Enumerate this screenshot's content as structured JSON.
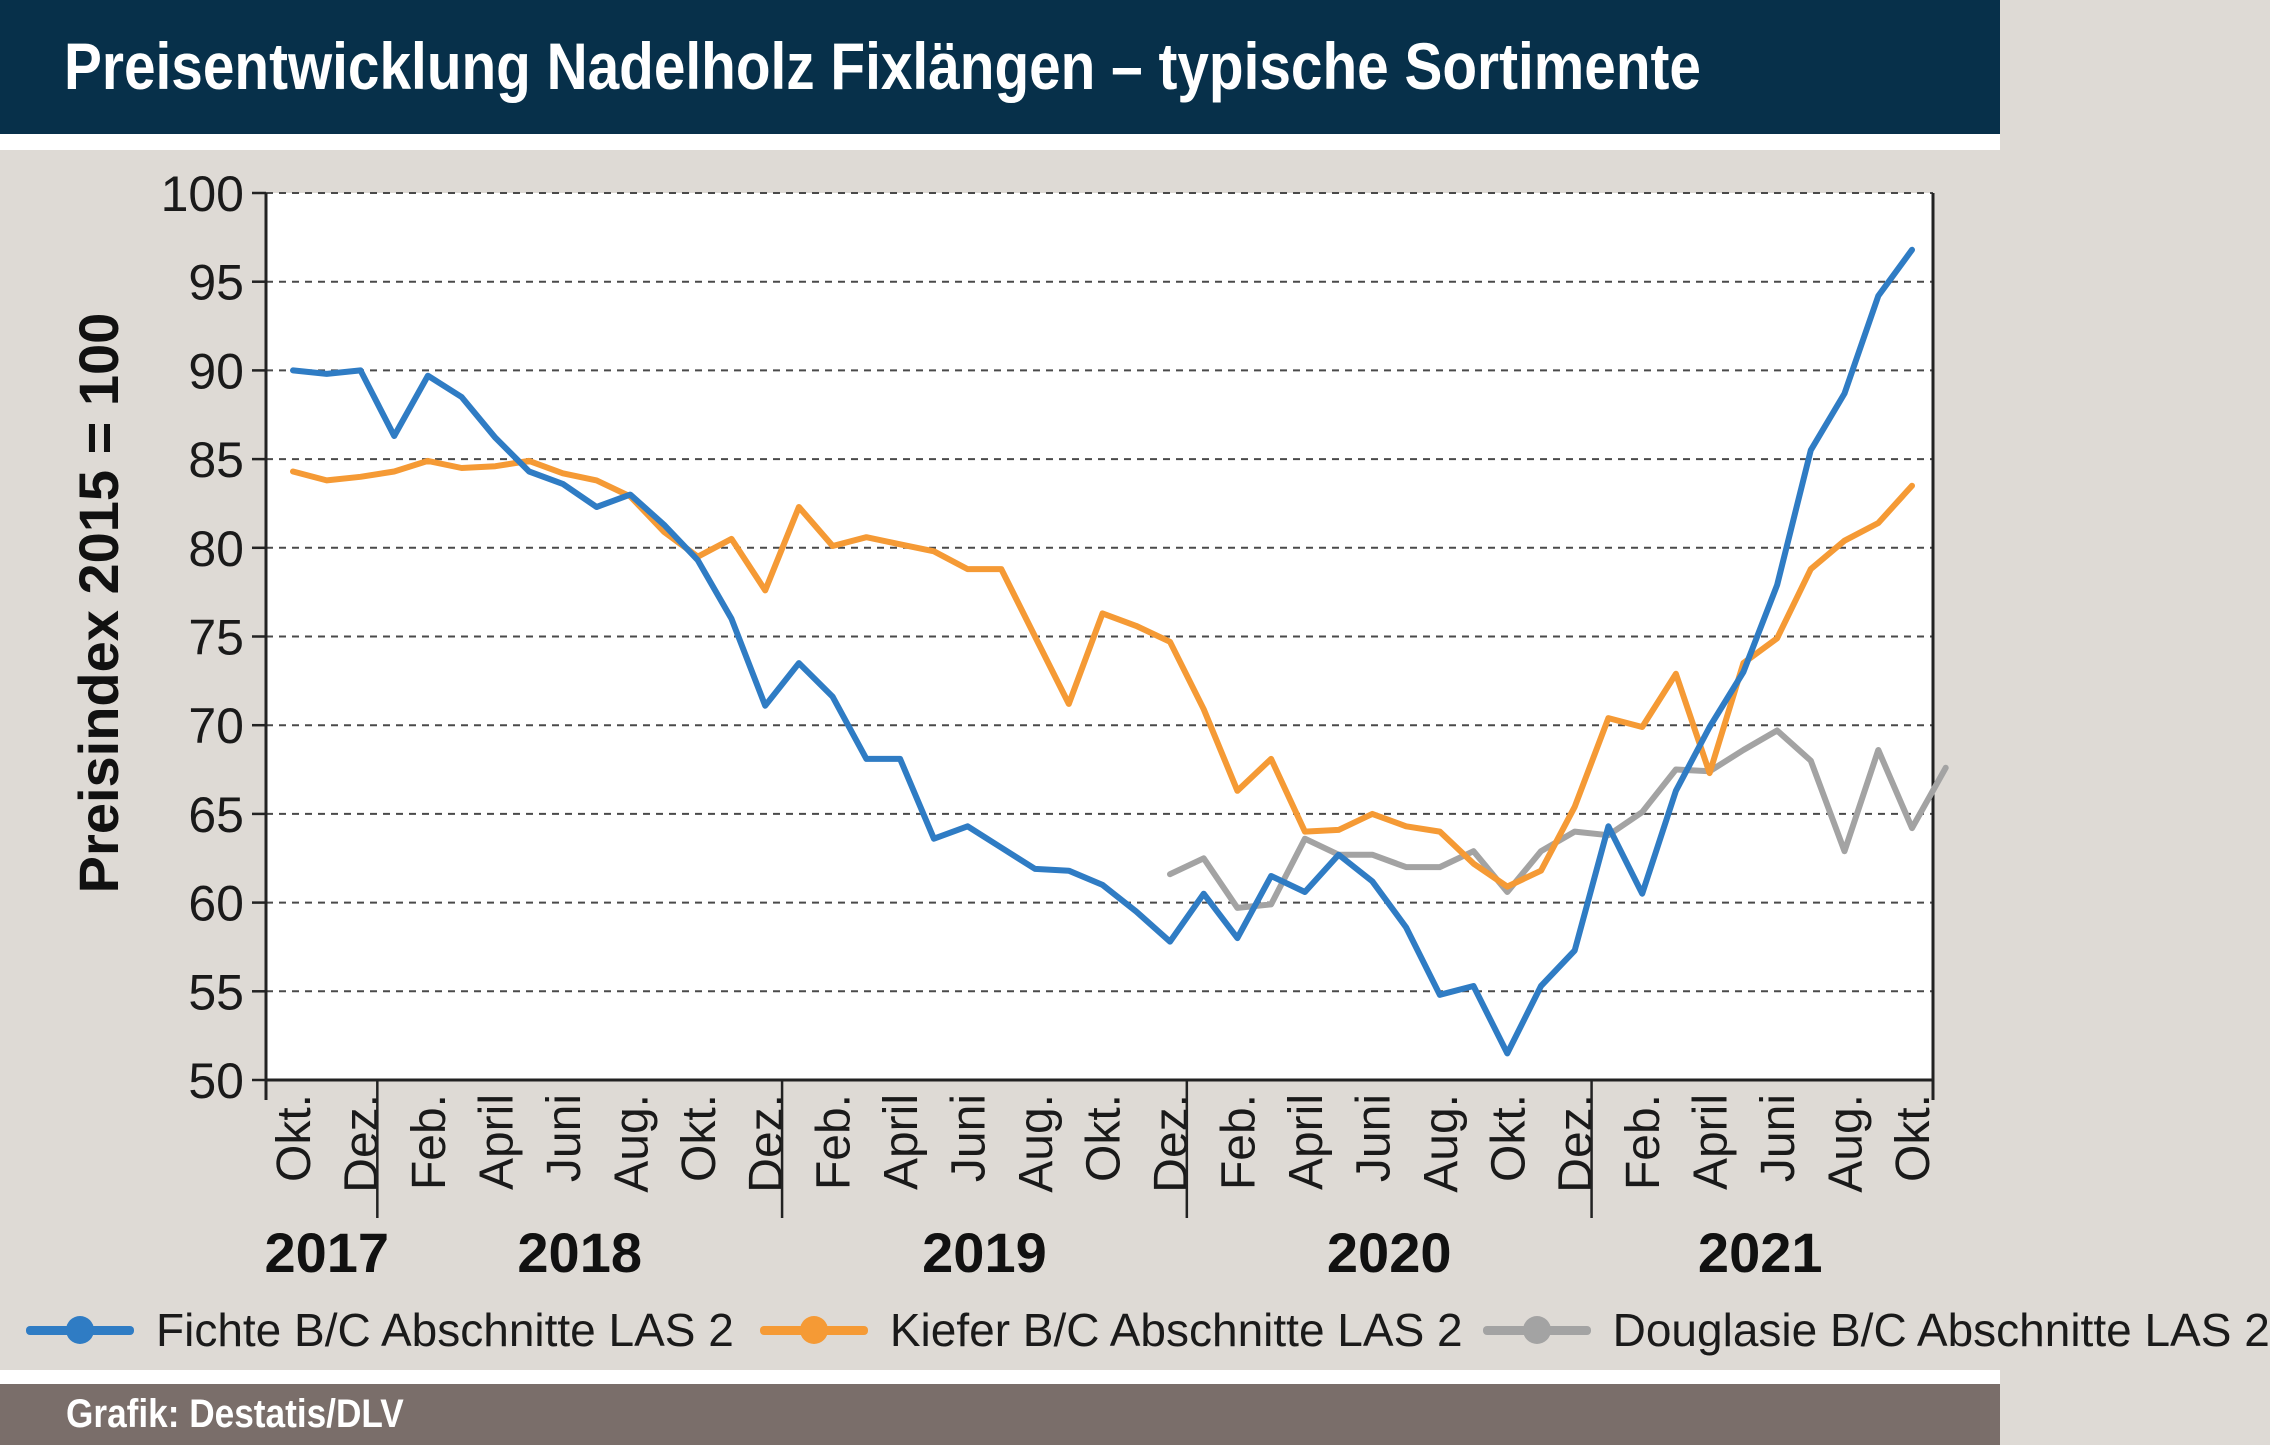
{
  "header": {
    "title": "Preisentwicklung Nadelholz Fixlängen – typische Sortimente"
  },
  "footer": {
    "source": "Grafik: Destatis/DLV"
  },
  "chart_data": {
    "type": "line",
    "title": "Preisentwicklung Nadelholz Fixlängen – typische Sortimente",
    "ylabel": "Preisindex 2015 = 100",
    "xlabel": "",
    "ylim": [
      50,
      100
    ],
    "yticks": [
      50,
      55,
      60,
      65,
      70,
      75,
      80,
      85,
      90,
      95,
      100
    ],
    "grid": "horizontal-dashed",
    "legend_position": "bottom",
    "x_start": "Okt. 2017",
    "x_end": "Okt. 2021",
    "month_labels": [
      {
        "label": "Okt.",
        "month": "2017-10"
      },
      {
        "label": "Dez.",
        "month": "2017-12"
      },
      {
        "label": "Feb.",
        "month": "2018-02"
      },
      {
        "label": "April",
        "month": "2018-04"
      },
      {
        "label": "Juni",
        "month": "2018-06"
      },
      {
        "label": "Aug.",
        "month": "2018-08"
      },
      {
        "label": "Okt.",
        "month": "2018-10"
      },
      {
        "label": "Dez.",
        "month": "2018-12"
      },
      {
        "label": "Feb.",
        "month": "2019-02"
      },
      {
        "label": "April",
        "month": "2019-04"
      },
      {
        "label": "Juni",
        "month": "2019-06"
      },
      {
        "label": "Aug.",
        "month": "2019-08"
      },
      {
        "label": "Okt.",
        "month": "2019-10"
      },
      {
        "label": "Dez.",
        "month": "2019-12"
      },
      {
        "label": "Feb.",
        "month": "2020-02"
      },
      {
        "label": "April",
        "month": "2020-04"
      },
      {
        "label": "Juni",
        "month": "2020-06"
      },
      {
        "label": "Aug.",
        "month": "2020-08"
      },
      {
        "label": "Okt.",
        "month": "2020-10"
      },
      {
        "label": "Dez.",
        "month": "2020-12"
      },
      {
        "label": "Feb.",
        "month": "2021-02"
      },
      {
        "label": "April",
        "month": "2021-04"
      },
      {
        "label": "Juni",
        "month": "2021-06"
      },
      {
        "label": "Aug.",
        "month": "2021-08"
      },
      {
        "label": "Okt.",
        "month": "2021-10"
      }
    ],
    "years": [
      {
        "label": "2017",
        "from": "2017-10",
        "to": "2017-12"
      },
      {
        "label": "2018",
        "from": "2018-01",
        "to": "2018-12"
      },
      {
        "label": "2019",
        "from": "2019-01",
        "to": "2019-12"
      },
      {
        "label": "2020",
        "from": "2020-01",
        "to": "2020-12"
      },
      {
        "label": "2021",
        "from": "2021-01",
        "to": "2021-10"
      }
    ],
    "series": [
      {
        "name": "Fichte B/C Abschnitte LAS 2",
        "color": "#2f7cc4",
        "start": "2017-10",
        "values": [
          90.0,
          89.8,
          90.0,
          86.3,
          89.7,
          88.5,
          86.2,
          84.3,
          83.6,
          82.3,
          83.0,
          81.3,
          79.3,
          76.0,
          71.1,
          73.5,
          71.6,
          68.1,
          68.1,
          63.6,
          64.3,
          63.1,
          61.9,
          61.8,
          61.0,
          59.5,
          57.8,
          60.5,
          58.0,
          61.5,
          60.6,
          62.7,
          61.2,
          58.6,
          54.8,
          55.3,
          51.5,
          55.3,
          57.3,
          64.3,
          60.5,
          66.3,
          69.9,
          73.0,
          77.9,
          85.5,
          88.7,
          94.2,
          96.8
        ]
      },
      {
        "name": "Kiefer B/C Abschnitte LAS 2",
        "color": "#f59a35",
        "start": "2017-10",
        "values": [
          84.3,
          83.8,
          84.0,
          84.3,
          84.9,
          84.5,
          84.6,
          84.9,
          84.2,
          83.8,
          82.9,
          80.9,
          79.5,
          80.5,
          77.6,
          82.3,
          80.1,
          80.6,
          80.2,
          79.8,
          78.8,
          78.8,
          75.0,
          71.2,
          76.3,
          75.6,
          74.7,
          70.9,
          66.3,
          68.1,
          64.0,
          64.1,
          65.0,
          64.3,
          64.0,
          62.2,
          60.9,
          61.8,
          65.4,
          70.4,
          69.9,
          72.9,
          67.3,
          73.5,
          74.9,
          78.8,
          80.4,
          81.4,
          83.5
        ]
      },
      {
        "name": "Douglasie B/C Abschnitte LAS 2",
        "color": "#a3a3a3",
        "start": "2019-12",
        "values": [
          61.6,
          62.5,
          59.7,
          59.9,
          63.6,
          62.7,
          62.7,
          62.0,
          62.0,
          62.9,
          60.6,
          62.9,
          64.0,
          63.8,
          65.1,
          67.5,
          67.4,
          68.6,
          69.7,
          68.0,
          62.9,
          68.6,
          64.2,
          67.6
        ]
      }
    ]
  }
}
